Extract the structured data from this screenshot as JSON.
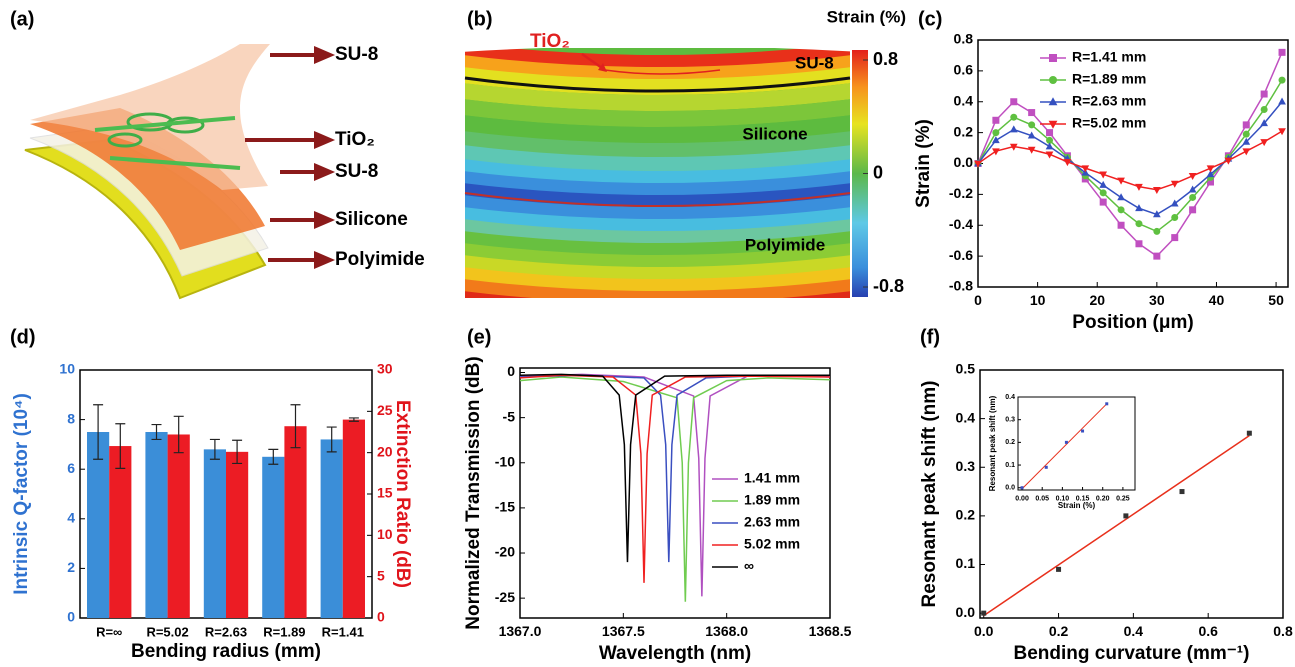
{
  "chart_data": [
    {
      "type": "illustration",
      "panel_label": "(a)",
      "labels": [
        "SU-8",
        "TiO₂",
        "SU-8",
        "Silicone",
        "Polyimide"
      ]
    },
    {
      "type": "strain-map",
      "panel_label": "(b)",
      "colorbar_title": "Strain (%)",
      "clim": [
        -0.8,
        0.8
      ],
      "colorbar_ticks": [
        0.8,
        0,
        -0.8
      ],
      "labels": [
        "TiO₂",
        "SU-8",
        "Silicone",
        "Polyimide"
      ]
    },
    {
      "type": "line",
      "panel_label": "(c)",
      "xlabel": "Position (μm)",
      "ylabel": "Strain (%)",
      "x": [
        0,
        3,
        6,
        9,
        12,
        15,
        18,
        21,
        24,
        27,
        30,
        33,
        36,
        39,
        42,
        45,
        48,
        51
      ],
      "xlim": [
        0,
        52
      ],
      "xticks": [
        0,
        10,
        20,
        30,
        40,
        50
      ],
      "ylim": [
        -0.8,
        0.8
      ],
      "yticks": [
        -0.8,
        -0.6,
        -0.4,
        -0.2,
        {
          "value": 0,
          "label": "0.0"
        },
        0.2,
        0.4,
        0.6,
        0.8
      ],
      "legend": "upper left",
      "series": [
        {
          "name": "R=1.41 mm",
          "color": "#c04fc0",
          "marker": "square",
          "values": [
            0,
            0.28,
            0.4,
            0.33,
            0.2,
            0.05,
            -0.1,
            -0.25,
            -0.4,
            -0.52,
            -0.6,
            -0.48,
            -0.3,
            -0.12,
            0.05,
            0.25,
            0.45,
            0.72
          ]
        },
        {
          "name": "R=1.89 mm",
          "color": "#5fc040",
          "marker": "circle",
          "values": [
            0,
            0.2,
            0.3,
            0.25,
            0.15,
            0.04,
            -0.08,
            -0.19,
            -0.3,
            -0.39,
            -0.44,
            -0.35,
            -0.22,
            -0.09,
            0.04,
            0.19,
            0.35,
            0.54
          ]
        },
        {
          "name": "R=2.63 mm",
          "color": "#3450c0",
          "marker": "triangle-up",
          "values": [
            0,
            0.15,
            0.22,
            0.18,
            0.11,
            0.03,
            -0.06,
            -0.14,
            -0.22,
            -0.29,
            -0.33,
            -0.26,
            -0.17,
            -0.07,
            0.03,
            0.14,
            0.26,
            0.4
          ]
        },
        {
          "name": "R=5.02 mm",
          "color": "#f02020",
          "marker": "triangle-down",
          "values": [
            0,
            0.08,
            0.11,
            0.09,
            0.06,
            0.01,
            -0.03,
            -0.07,
            -0.11,
            -0.15,
            -0.17,
            -0.13,
            -0.08,
            -0.03,
            0.02,
            0.08,
            0.14,
            0.21
          ]
        }
      ]
    },
    {
      "type": "bar",
      "panel_label": "(d)",
      "xlabel": "Bending radius (mm)",
      "ylabel": "Intrinsic Q-factor (10⁴)",
      "y2label": "Extinction Ratio (dB)",
      "categories": [
        "R=∞",
        "R=5.02",
        "R=2.63",
        "R=1.89",
        "R=1.41"
      ],
      "ylim": [
        0,
        10
      ],
      "yticks": [
        0,
        2,
        4,
        6,
        8,
        10
      ],
      "y2lim": [
        0,
        30
      ],
      "y2ticks": [
        0,
        5,
        10,
        15,
        20,
        25,
        30
      ],
      "y_color": "#2f72d0",
      "y2_color": "#e0141b",
      "series": [
        {
          "color": "#3b8ed8",
          "values": [
            7.5,
            7.5,
            6.8,
            6.5,
            7.2
          ],
          "errors": [
            1.1,
            0.3,
            0.4,
            0.3,
            0.5
          ]
        },
        {
          "color": "#ec1c24",
          "axis": "y2",
          "values": [
            20.8,
            22.2,
            20.1,
            23.2,
            24.0
          ],
          "errors": [
            2.7,
            2.2,
            1.4,
            2.6,
            0.2
          ]
        }
      ]
    },
    {
      "type": "line",
      "panel_label": "(e)",
      "xlabel": "Wavelength (nm)",
      "ylabel": "Normalized Transmission (dB)",
      "xlim": [
        1367.0,
        1368.5
      ],
      "xticks": [
        {
          "value": 1367.0,
          "label": "1367.0"
        },
        {
          "value": 1367.5,
          "label": "1367.5"
        },
        {
          "value": 1368.0,
          "label": "1368.0"
        },
        {
          "value": 1368.5,
          "label": "1368.5"
        }
      ],
      "ylim": [
        -27.2,
        0.5
      ],
      "yticks": [
        -25,
        -20,
        -15,
        -10,
        -5,
        0
      ],
      "legend": "center right",
      "series": [
        {
          "name": "1.41 mm",
          "color": "#b050c0",
          "x": [
            1367.0,
            1367.3,
            1367.6,
            1367.84,
            1367.865,
            1367.88,
            1367.895,
            1367.92,
            1368.1,
            1368.3,
            1368.5
          ],
          "values": [
            -0.4,
            -0.2,
            -0.5,
            -2.6,
            -9.5,
            -24.8,
            -9.5,
            -2.6,
            -0.4,
            -0.3,
            -0.5
          ]
        },
        {
          "name": "1.89 mm",
          "color": "#70cc50",
          "x": [
            1367.0,
            1367.2,
            1367.5,
            1367.76,
            1367.785,
            1367.8,
            1367.815,
            1367.84,
            1368.0,
            1368.2,
            1368.5
          ],
          "values": [
            -0.9,
            -0.5,
            -1.0,
            -2.8,
            -10,
            -25.4,
            -10,
            -2.8,
            -0.9,
            -0.6,
            -0.8
          ]
        },
        {
          "name": "2.63 mm",
          "color": "#3a4fc0",
          "x": [
            1367.0,
            1367.3,
            1367.6,
            1367.68,
            1367.705,
            1367.72,
            1367.735,
            1367.76,
            1367.9,
            1368.2,
            1368.5
          ],
          "values": [
            -0.5,
            -0.3,
            -0.6,
            -2.5,
            -8,
            -21,
            -8,
            -2.5,
            -0.6,
            -0.3,
            -0.4
          ]
        },
        {
          "name": "5.02 mm",
          "color": "#f02020",
          "x": [
            1367.0,
            1367.2,
            1367.45,
            1367.56,
            1367.585,
            1367.6,
            1367.615,
            1367.64,
            1367.8,
            1368.1,
            1368.5
          ],
          "values": [
            -0.6,
            -0.3,
            -0.5,
            -2.5,
            -9,
            -23.3,
            -9,
            -2.5,
            -0.5,
            -0.4,
            -0.5
          ]
        },
        {
          "name": "∞",
          "color": "#000000",
          "x": [
            1367.0,
            1367.2,
            1367.4,
            1367.48,
            1367.505,
            1367.52,
            1367.535,
            1367.56,
            1367.7,
            1368.0,
            1368.5
          ],
          "values": [
            -0.3,
            -0.2,
            -0.4,
            -2.5,
            -8,
            -21,
            -8,
            -2.5,
            -0.4,
            -0.3,
            -0.3
          ]
        }
      ]
    },
    {
      "type": "scatter",
      "panel_label": "(f)",
      "xlabel": "Bending curvature (mm⁻¹)",
      "ylabel": "Resonant peak shift (nm)",
      "x": [
        0,
        0.2,
        0.38,
        0.53,
        0.71
      ],
      "values": [
        0,
        0.09,
        0.2,
        0.25,
        0.37
      ],
      "color": "#333333",
      "fit": {
        "x": [
          0,
          0.71
        ],
        "values": [
          -0.005,
          0.365
        ],
        "color": "#e8301c"
      },
      "xlim": [
        -0.01,
        0.8
      ],
      "xticks": [
        {
          "value": 0,
          "label": "0.0"
        },
        0.2,
        0.4,
        0.6,
        0.8
      ],
      "ylim": [
        -0.01,
        0.5
      ],
      "yticks": [
        {
          "value": 0,
          "label": "0.0"
        },
        0.1,
        0.2,
        0.3,
        0.4,
        0.5
      ]
    },
    {
      "type": "scatter",
      "xlabel": "Strain (%)",
      "ylabel": "Resonant peak shift (nm)",
      "x": [
        0,
        0.06,
        0.11,
        0.15,
        0.21
      ],
      "values": [
        0,
        0.09,
        0.2,
        0.25,
        0.37
      ],
      "color": "#3a4fc0",
      "fit": {
        "x": [
          0,
          0.21
        ],
        "values": [
          -0.005,
          0.37
        ],
        "color": "#e8301c"
      },
      "xlim": [
        -0.01,
        0.28
      ],
      "xticks": [
        {
          "value": 0,
          "label": "0.00"
        },
        {
          "value": 0.05,
          "label": "0.05"
        },
        {
          "value": 0.1,
          "label": "0.10"
        },
        {
          "value": 0.15,
          "label": "0.15"
        },
        {
          "value": 0.2,
          "label": "0.20"
        },
        {
          "value": 0.25,
          "label": "0.25"
        }
      ],
      "ylim": [
        -0.01,
        0.4
      ],
      "yticks": [
        {
          "value": 0,
          "label": "0.0"
        },
        0.1,
        0.2,
        0.3,
        0.4
      ]
    }
  ]
}
